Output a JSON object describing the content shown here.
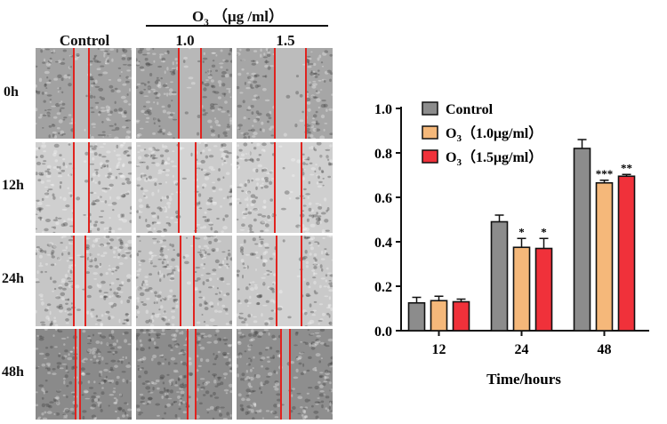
{
  "figure": {
    "group_header_prefix": "O",
    "group_header_sub": "3",
    "group_header_unit": "（μg /ml）",
    "columns": [
      "Control",
      "1.0",
      "1.5"
    ],
    "rows": [
      "0h",
      "12h",
      "24h",
      "48h"
    ],
    "gap_line_color": "#e0231f",
    "gaps": [
      [
        [
          0.4,
          0.56
        ],
        [
          0.44,
          0.68
        ],
        [
          0.4,
          0.72
        ]
      ],
      [
        [
          0.4,
          0.56
        ],
        [
          0.44,
          0.62
        ],
        [
          0.4,
          0.68
        ]
      ],
      [
        [
          0.4,
          0.52
        ],
        [
          0.46,
          0.6
        ],
        [
          0.42,
          0.68
        ]
      ],
      [
        [
          0.42,
          0.46
        ],
        [
          0.54,
          0.62
        ],
        [
          0.46,
          0.56
        ]
      ]
    ],
    "tones": [
      [
        "#a2a2a2",
        "#a0a0a0",
        "#a6a6a6"
      ],
      [
        "#cfcfcf",
        "#cbcbcb",
        "#cfcfcf"
      ],
      [
        "#c6c6c6",
        "#c4c4c4",
        "#c9c9c9"
      ],
      [
        "#8a8a8a",
        "#8c8c8c",
        "#8e8e8e"
      ]
    ]
  },
  "chart_data": {
    "type": "bar",
    "categories": [
      "12",
      "24",
      "48"
    ],
    "xlabel": "Time/hours",
    "ylabel": "",
    "ylim": [
      0,
      1.0
    ],
    "yticks": [
      "0.0",
      "0.2",
      "0.4",
      "0.6",
      "0.8",
      "1.0"
    ],
    "legend_position": "top-left",
    "series": [
      {
        "name": "Control",
        "legend_label": "Control",
        "color": "#8c8c8c",
        "values": [
          0.125,
          0.49,
          0.82
        ],
        "errors": [
          0.025,
          0.03,
          0.04
        ],
        "sig": [
          "",
          "",
          ""
        ]
      },
      {
        "name": "O3 (1.0μg/ml)",
        "legend_prefix": "O",
        "legend_sub": "3",
        "legend_suffix": "（1.0μg/ml）",
        "color": "#f5b87a",
        "values": [
          0.135,
          0.375,
          0.665
        ],
        "errors": [
          0.02,
          0.04,
          0.012
        ],
        "sig": [
          "",
          "*",
          "***"
        ]
      },
      {
        "name": "O3 (1.5μg/ml)",
        "legend_prefix": "O",
        "legend_sub": "3",
        "legend_suffix": "（1.5μg/ml）",
        "color": "#f0313a",
        "values": [
          0.13,
          0.37,
          0.695
        ],
        "errors": [
          0.012,
          0.045,
          0.008
        ],
        "sig": [
          "",
          "*",
          "**"
        ]
      }
    ],
    "grid": false
  }
}
